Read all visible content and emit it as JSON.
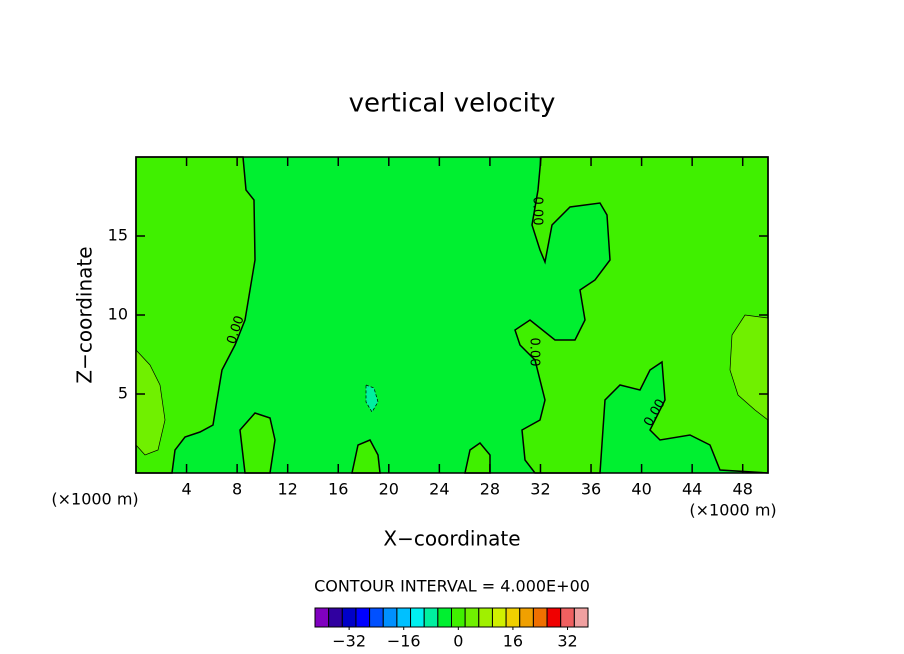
{
  "chart_data": {
    "type": "contour",
    "title": "vertical velocity",
    "xlabel": "X−coordinate",
    "ylabel": "Z−coordinate",
    "x_unit_label": "(×1000 m)",
    "y_unit_label": "(×1000 m)",
    "xlim": [
      0,
      50
    ],
    "ylim": [
      0,
      20
    ],
    "xticks": [
      4,
      8,
      12,
      16,
      20,
      24,
      28,
      32,
      36,
      40,
      44,
      48
    ],
    "yticks": [
      5,
      10,
      15
    ],
    "contour_interval_label": "CONTOUR INTERVAL = 4.000E+00",
    "contour_labels": [
      "0.00",
      "0.00",
      "0.00",
      "0.00"
    ],
    "colorbar": {
      "clim": [
        -40,
        40
      ],
      "colors": [
        "#8000c0",
        "#3000a0",
        "#0000c8",
        "#0000ff",
        "#0050ff",
        "#0090ff",
        "#00c0ff",
        "#00f0f0",
        "#00f0a0",
        "#00f030",
        "#40f000",
        "#70f000",
        "#a0f000",
        "#d0f000",
        "#f0d000",
        "#f0a000",
        "#f07000",
        "#f00000",
        "#f06060",
        "#f0a0a0"
      ],
      "ticks": [
        {
          "value": -32,
          "label": "−32"
        },
        {
          "value": -16,
          "label": "−16"
        },
        0,
        16,
        32
      ]
    }
  }
}
